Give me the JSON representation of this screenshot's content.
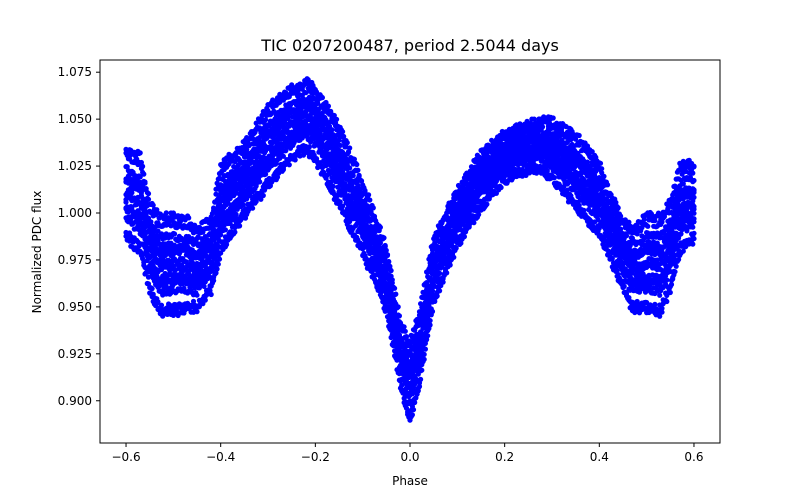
{
  "chart_data": {
    "type": "scatter",
    "title": "TIC 0207200487, period 2.5044 days",
    "xlabel": "Phase",
    "ylabel": "Normalized PDC flux",
    "xlim": [
      -0.655,
      0.655
    ],
    "ylim": [
      0.8775,
      1.0815
    ],
    "x_ticks": [
      -0.6,
      -0.4,
      -0.2,
      0.0,
      0.2,
      0.4,
      0.6
    ],
    "x_tick_labels": [
      "−0.6",
      "−0.4",
      "−0.2",
      "0.0",
      "0.2",
      "0.4",
      "0.6"
    ],
    "y_ticks": [
      0.9,
      0.925,
      0.95,
      0.975,
      1.0,
      1.025,
      1.05,
      1.075
    ],
    "y_tick_labels": [
      "0.900",
      "0.925",
      "0.950",
      "0.975",
      "1.000",
      "1.025",
      "1.050",
      "1.075"
    ],
    "grid": false,
    "legend": "none",
    "marker_color": "#0000ff",
    "phase_range": [
      -0.6,
      0.6
    ],
    "envelope": {
      "phase": [
        -0.6,
        -0.57,
        -0.55,
        -0.53,
        -0.5,
        -0.47,
        -0.45,
        -0.42,
        -0.4,
        -0.35,
        -0.3,
        -0.25,
        -0.22,
        -0.2,
        -0.15,
        -0.1,
        -0.05,
        -0.02,
        0.0,
        0.02,
        0.05,
        0.1,
        0.15,
        0.2,
        0.25,
        0.28,
        0.3,
        0.35,
        0.4,
        0.42,
        0.45,
        0.47,
        0.5,
        0.53,
        0.55,
        0.57,
        0.6
      ],
      "flux_min": [
        0.982,
        0.975,
        0.955,
        0.942,
        0.942,
        0.944,
        0.945,
        0.955,
        0.975,
        0.995,
        1.01,
        1.025,
        1.03,
        1.025,
        1.0,
        0.975,
        0.945,
        0.905,
        0.885,
        0.905,
        0.95,
        0.98,
        1.0,
        1.015,
        1.02,
        1.02,
        1.015,
        1.0,
        0.985,
        0.975,
        0.955,
        0.945,
        0.943,
        0.942,
        0.955,
        0.975,
        0.982
      ],
      "flux_max": [
        1.038,
        1.035,
        1.01,
        1.003,
        1.003,
        1.001,
        0.995,
        1.0,
        1.03,
        1.04,
        1.06,
        1.07,
        1.074,
        1.07,
        1.05,
        1.02,
        0.985,
        0.945,
        0.935,
        0.95,
        0.99,
        1.015,
        1.035,
        1.045,
        1.05,
        1.052,
        1.052,
        1.045,
        1.03,
        1.015,
        1.0,
        0.995,
        1.003,
        1.003,
        1.01,
        1.03,
        1.03
      ]
    }
  }
}
